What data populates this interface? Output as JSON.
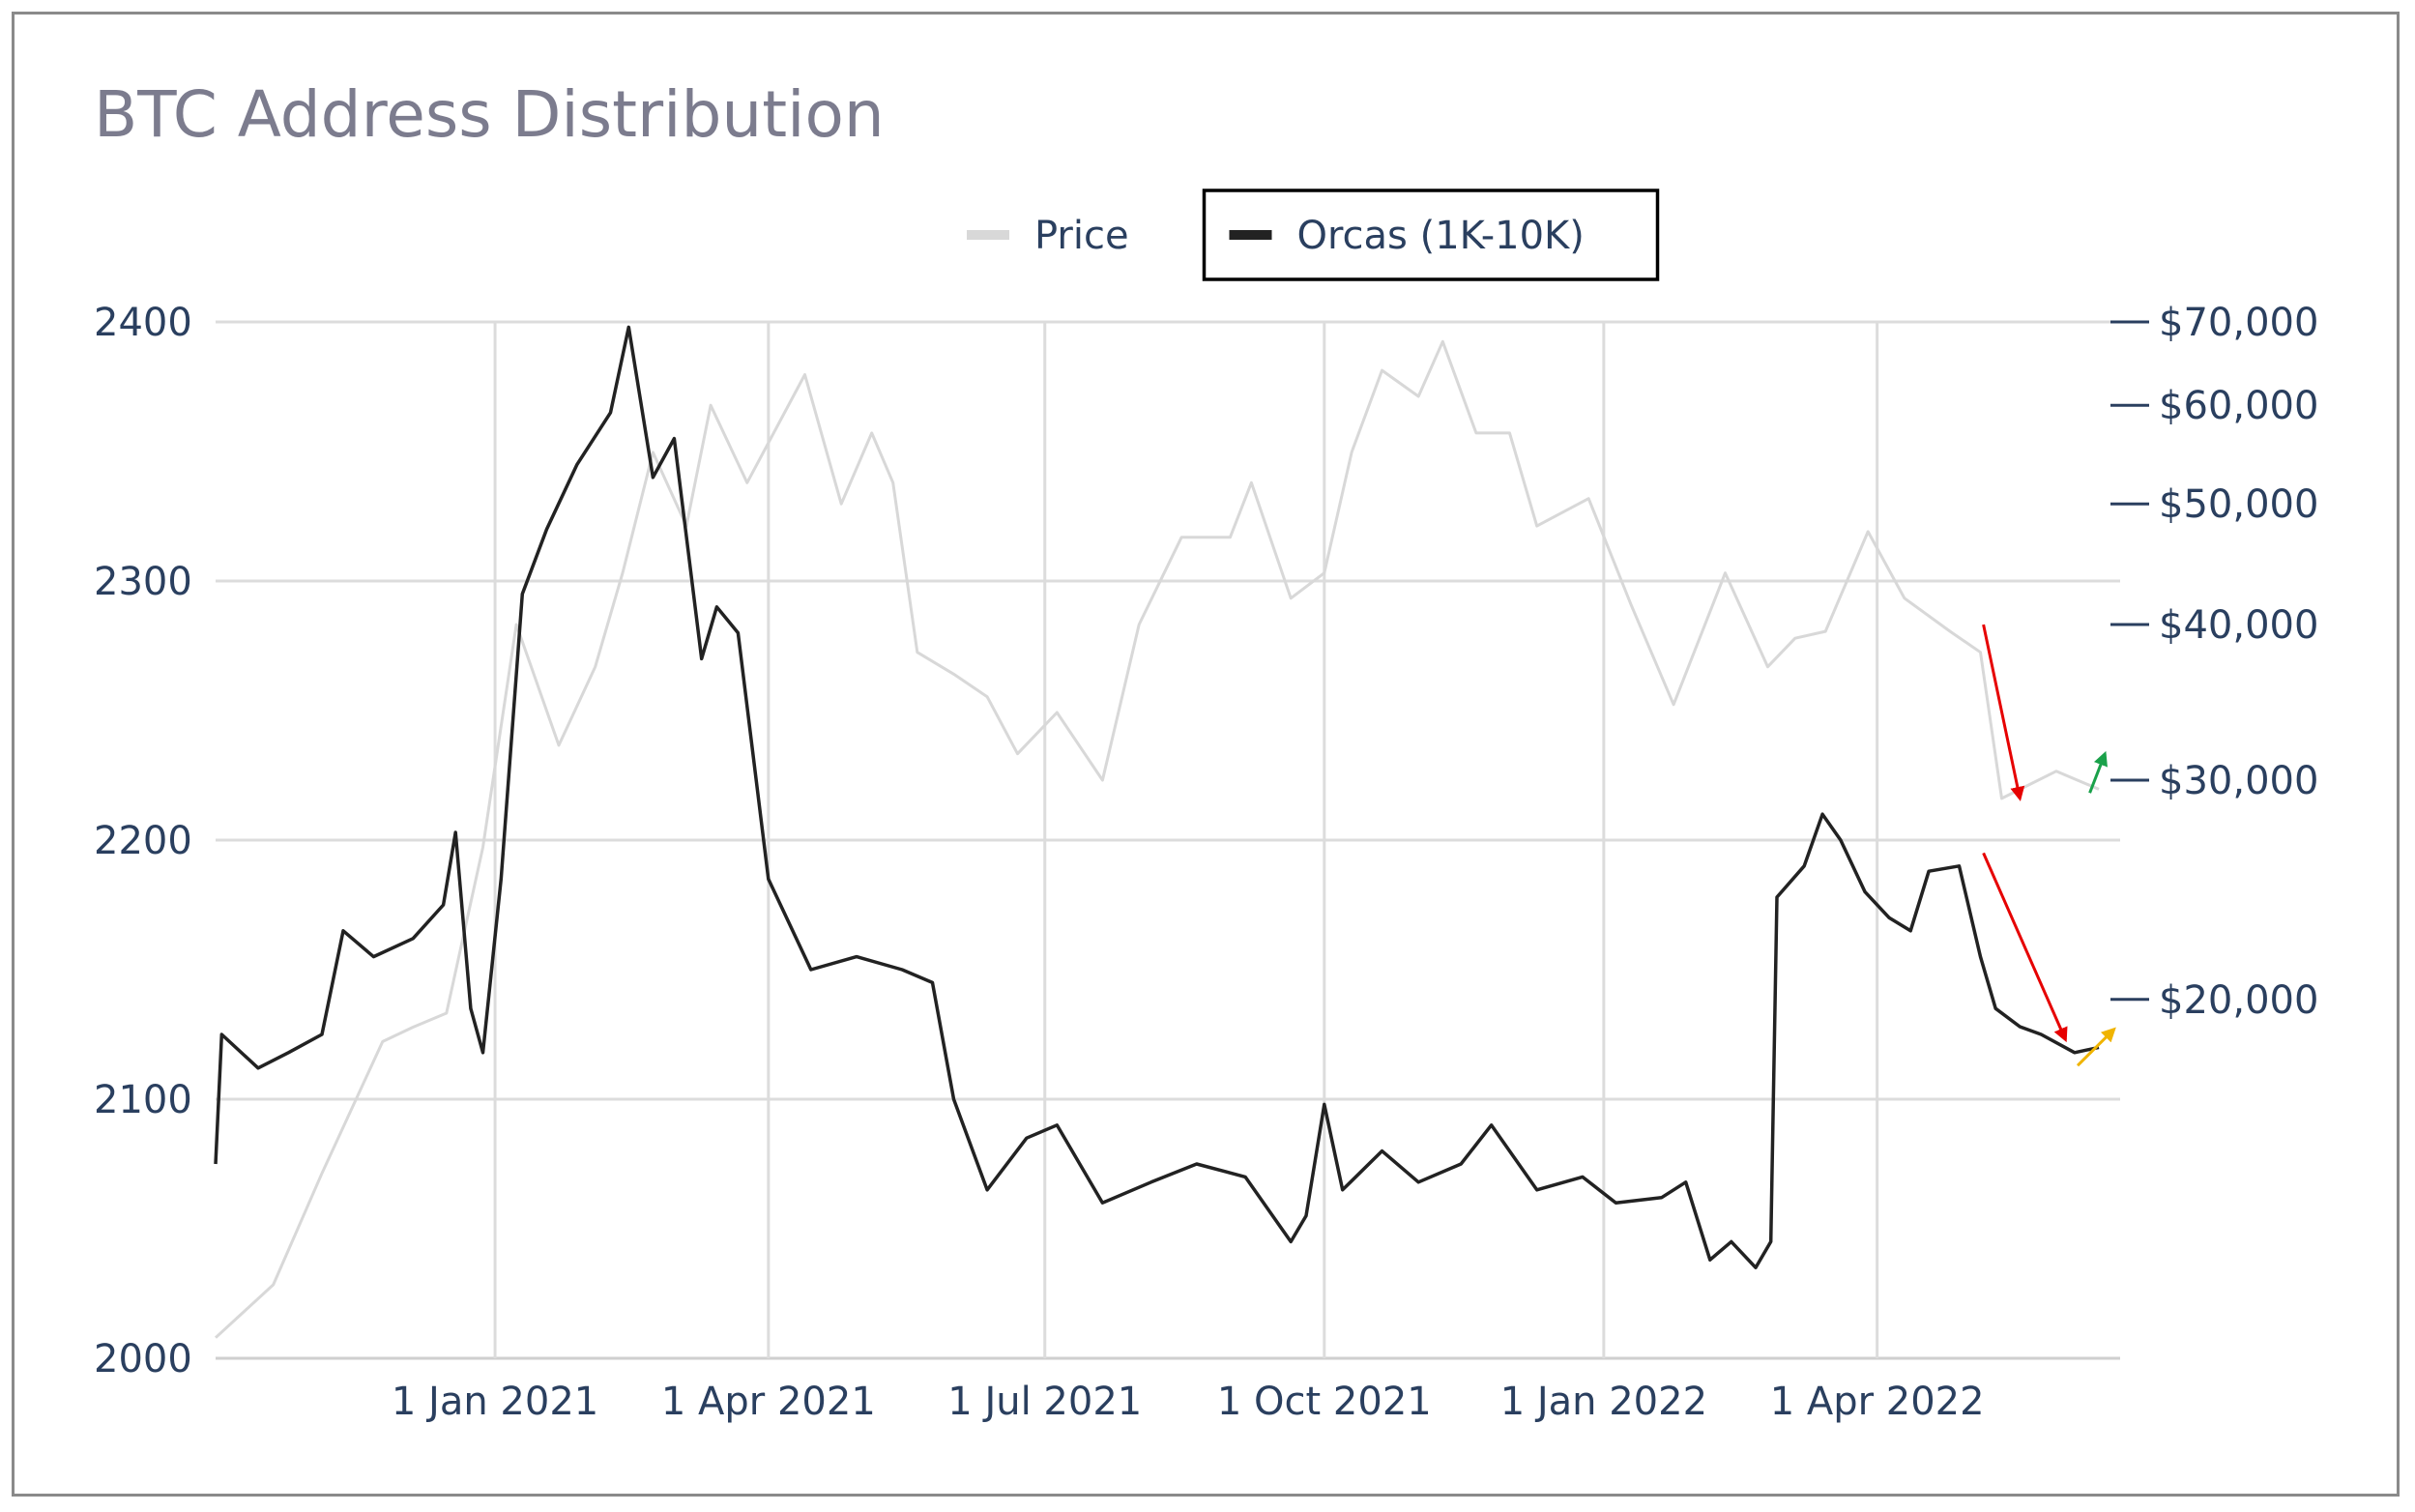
{
  "chart_data": {
    "type": "line",
    "title": "BTC Address Distribution",
    "legend": {
      "placement": "top-center",
      "items": [
        {
          "name": "Price",
          "color": "#d8d8d8"
        },
        {
          "name": "Orcas (1K-10K)",
          "color": "#222222",
          "highlighted": true
        }
      ]
    },
    "x_axis": {
      "type": "date",
      "range": [
        "2020-10-01",
        "2022-06-20"
      ],
      "ticks": [
        {
          "value": "2021-01-01",
          "label": "1 Jan 2021"
        },
        {
          "value": "2021-04-01",
          "label": "1 Apr 2021"
        },
        {
          "value": "2021-07-01",
          "label": "1 Jul 2021"
        },
        {
          "value": "2021-10-01",
          "label": "1 Oct 2021"
        },
        {
          "value": "2022-01-01",
          "label": "1 Jan 2022"
        },
        {
          "value": "2022-04-01",
          "label": "1 Apr 2022"
        }
      ],
      "grid": true
    },
    "y_axis_left": {
      "series": "Orcas (1K-10K)",
      "range": [
        2000,
        2400
      ],
      "ticks": [
        {
          "value": 2000,
          "label": "2000"
        },
        {
          "value": 2100,
          "label": "2100"
        },
        {
          "value": 2200,
          "label": "2200"
        },
        {
          "value": 2300,
          "label": "2300"
        },
        {
          "value": 2400,
          "label": "2400"
        }
      ],
      "grid": true
    },
    "y_axis_right": {
      "series": "Price",
      "scale": "log",
      "range": [
        10300,
        70000
      ],
      "ticks": [
        {
          "value": 20000,
          "label": "$20,000"
        },
        {
          "value": 30000,
          "label": "$30,000"
        },
        {
          "value": 40000,
          "label": "$40,000"
        },
        {
          "value": 50000,
          "label": "$50,000"
        },
        {
          "value": 60000,
          "label": "$60,000"
        },
        {
          "value": 70000,
          "label": "$70,000"
        }
      ]
    },
    "series": [
      {
        "name": "Price",
        "axis": "right",
        "color": "#d8d8d8",
        "points": [
          [
            "2020-10-01",
            10700
          ],
          [
            "2020-10-20",
            11800
          ],
          [
            "2020-11-05",
            14500
          ],
          [
            "2020-11-25",
            18500
          ],
          [
            "2020-12-05",
            19000
          ],
          [
            "2020-12-16",
            19500
          ],
          [
            "2020-12-28",
            26500
          ],
          [
            "2021-01-08",
            40000
          ],
          [
            "2021-01-22",
            32000
          ],
          [
            "2021-02-03",
            37000
          ],
          [
            "2021-02-12",
            44000
          ],
          [
            "2021-02-22",
            55000
          ],
          [
            "2021-03-05",
            48000
          ],
          [
            "2021-03-13",
            60000
          ],
          [
            "2021-03-25",
            52000
          ],
          [
            "2021-04-13",
            63500
          ],
          [
            "2021-04-25",
            50000
          ],
          [
            "2021-05-05",
            57000
          ],
          [
            "2021-05-12",
            52000
          ],
          [
            "2021-05-20",
            38000
          ],
          [
            "2021-06-01",
            36500
          ],
          [
            "2021-06-12",
            35000
          ],
          [
            "2021-06-22",
            31500
          ],
          [
            "2021-07-05",
            34000
          ],
          [
            "2021-07-20",
            30000
          ],
          [
            "2021-08-01",
            40000
          ],
          [
            "2021-08-15",
            47000
          ],
          [
            "2021-08-31",
            47000
          ],
          [
            "2021-09-07",
            52000
          ],
          [
            "2021-09-20",
            42000
          ],
          [
            "2021-10-01",
            44000
          ],
          [
            "2021-10-10",
            55000
          ],
          [
            "2021-10-20",
            64000
          ],
          [
            "2021-11-01",
            61000
          ],
          [
            "2021-11-09",
            67500
          ],
          [
            "2021-11-20",
            57000
          ],
          [
            "2021-12-01",
            57000
          ],
          [
            "2021-12-10",
            48000
          ],
          [
            "2021-12-27",
            50500
          ],
          [
            "2022-01-10",
            41500
          ],
          [
            "2022-01-24",
            34500
          ],
          [
            "2022-02-10",
            44000
          ],
          [
            "2022-02-24",
            37000
          ],
          [
            "2022-03-05",
            39000
          ],
          [
            "2022-03-15",
            39500
          ],
          [
            "2022-03-29",
            47500
          ],
          [
            "2022-04-10",
            42000
          ],
          [
            "2022-04-25",
            39500
          ],
          [
            "2022-05-05",
            38000
          ],
          [
            "2022-05-12",
            29000
          ],
          [
            "2022-05-30",
            30500
          ],
          [
            "2022-06-13",
            29500
          ]
        ]
      },
      {
        "name": "Orcas (1K-10K)",
        "axis": "left",
        "color": "#222222",
        "points": [
          [
            "2020-10-01",
            2075
          ],
          [
            "2020-10-03",
            2125
          ],
          [
            "2020-10-15",
            2112
          ],
          [
            "2020-10-25",
            2118
          ],
          [
            "2020-11-05",
            2125
          ],
          [
            "2020-11-12",
            2165
          ],
          [
            "2020-11-22",
            2155
          ],
          [
            "2020-12-05",
            2162
          ],
          [
            "2020-12-15",
            2175
          ],
          [
            "2020-12-19",
            2203
          ],
          [
            "2020-12-24",
            2135
          ],
          [
            "2020-12-28",
            2118
          ],
          [
            "2021-01-03",
            2185
          ],
          [
            "2021-01-10",
            2295
          ],
          [
            "2021-01-18",
            2320
          ],
          [
            "2021-01-28",
            2345
          ],
          [
            "2021-02-08",
            2365
          ],
          [
            "2021-02-14",
            2398
          ],
          [
            "2021-02-22",
            2340
          ],
          [
            "2021-03-01",
            2355
          ],
          [
            "2021-03-10",
            2270
          ],
          [
            "2021-03-15",
            2290
          ],
          [
            "2021-03-22",
            2280
          ],
          [
            "2021-04-01",
            2185
          ],
          [
            "2021-04-15",
            2150
          ],
          [
            "2021-04-30",
            2155
          ],
          [
            "2021-05-15",
            2150
          ],
          [
            "2021-05-25",
            2145
          ],
          [
            "2021-06-01",
            2100
          ],
          [
            "2021-06-12",
            2065
          ],
          [
            "2021-06-25",
            2085
          ],
          [
            "2021-07-05",
            2090
          ],
          [
            "2021-07-20",
            2060
          ],
          [
            "2021-08-05",
            2068
          ],
          [
            "2021-08-20",
            2075
          ],
          [
            "2021-09-05",
            2070
          ],
          [
            "2021-09-20",
            2045
          ],
          [
            "2021-09-25",
            2055
          ],
          [
            "2021-10-01",
            2098
          ],
          [
            "2021-10-07",
            2065
          ],
          [
            "2021-10-20",
            2080
          ],
          [
            "2021-11-01",
            2068
          ],
          [
            "2021-11-15",
            2075
          ],
          [
            "2021-11-25",
            2090
          ],
          [
            "2021-12-10",
            2065
          ],
          [
            "2021-12-25",
            2070
          ],
          [
            "2022-01-05",
            2060
          ],
          [
            "2022-01-20",
            2062
          ],
          [
            "2022-01-28",
            2068
          ],
          [
            "2022-02-05",
            2038
          ],
          [
            "2022-02-12",
            2045
          ],
          [
            "2022-02-20",
            2035
          ],
          [
            "2022-02-25",
            2045
          ],
          [
            "2022-02-27",
            2178
          ],
          [
            "2022-03-08",
            2190
          ],
          [
            "2022-03-14",
            2210
          ],
          [
            "2022-03-20",
            2200
          ],
          [
            "2022-03-28",
            2180
          ],
          [
            "2022-04-05",
            2170
          ],
          [
            "2022-04-12",
            2165
          ],
          [
            "2022-04-18",
            2188
          ],
          [
            "2022-04-28",
            2190
          ],
          [
            "2022-05-05",
            2155
          ],
          [
            "2022-05-10",
            2135
          ],
          [
            "2022-05-18",
            2128
          ],
          [
            "2022-05-25",
            2125
          ],
          [
            "2022-06-05",
            2118
          ],
          [
            "2022-06-13",
            2120
          ]
        ]
      }
    ],
    "annotations": [
      {
        "kind": "arrow",
        "color": "#e60000",
        "direction": "down",
        "series": "Price",
        "from": [
          "2022-05-06",
          40000
        ],
        "to": [
          "2022-05-18",
          29000
        ]
      },
      {
        "kind": "arrow",
        "color": "#e60000",
        "direction": "down",
        "series": "Orcas (1K-10K)",
        "from": [
          "2022-05-06",
          2195
        ],
        "to": [
          "2022-06-02",
          2123
        ]
      },
      {
        "kind": "arrow",
        "color": "#1aa14a",
        "direction": "up",
        "series": "Price",
        "from": [
          "2022-06-10",
          29300
        ],
        "to": [
          "2022-06-15",
          31500
        ]
      },
      {
        "kind": "arrow",
        "color": "#f0b400",
        "direction": "up",
        "series": "Orcas (1K-10K)",
        "from": [
          "2022-06-06",
          2113
        ],
        "to": [
          "2022-06-18",
          2127
        ]
      }
    ]
  }
}
